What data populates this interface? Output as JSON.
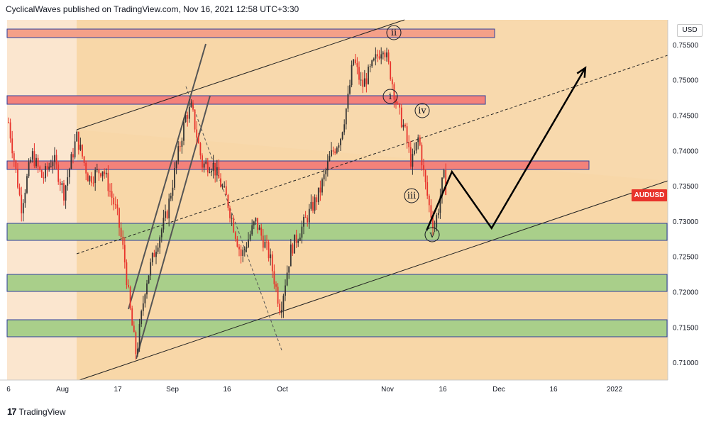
{
  "header": {
    "publisher_text": "CyclicalWaves published on TradingView.com, Nov 16, 2021 12:58 UTC+3:30"
  },
  "footer": {
    "brand": "TradingView",
    "logo_glyph": "17"
  },
  "colors": {
    "up_candle": "#333333",
    "down_candle": "#e8332b",
    "red_zone": "#f4827a",
    "green_zone": "#8cc878",
    "orange_bg": "#f8d7a8",
    "badge": "#e8332b"
  },
  "chart_data": {
    "type": "candlestick",
    "symbol": "AUDUSD",
    "currency": "USD",
    "x_ticks": [
      "6",
      "Aug",
      "17",
      "Sep",
      "16",
      "Oct",
      "Nov",
      "16",
      "Dec",
      "16",
      "2022"
    ],
    "y_ticks": [
      "0.75500",
      "0.75000",
      "0.74500",
      "0.74000",
      "0.73500",
      "0.73000",
      "0.72500",
      "0.72000",
      "0.71500",
      "0.71000"
    ],
    "ylim": [
      0.7075,
      0.7585
    ],
    "resistance_zones": [
      [
        0.7556,
        0.7567
      ],
      [
        0.7465,
        0.7477
      ],
      [
        0.7372,
        0.7383
      ]
    ],
    "support_zones": [
      [
        0.7272,
        0.7296
      ],
      [
        0.7202,
        0.7226
      ],
      [
        0.7138,
        0.7162
      ]
    ],
    "wave_labels": [
      {
        "label": "ii",
        "date": "2021-10-28",
        "price": 0.7563
      },
      {
        "label": "i",
        "date": "2021-10-28",
        "price": 0.7473
      },
      {
        "label": "iv",
        "date": "2021-11-05",
        "price": 0.7455
      },
      {
        "label": "iii",
        "date": "2021-11-08",
        "price": 0.7335
      },
      {
        "label": "v",
        "date": "2021-11-10",
        "price": 0.728
      }
    ],
    "projection_path": [
      {
        "date": "2021-11-10",
        "price": 0.7287
      },
      {
        "date": "2021-11-17",
        "price": 0.737
      },
      {
        "date": "2021-11-28",
        "price": 0.729
      },
      {
        "date": "2021-12-24",
        "price": 0.7517
      }
    ],
    "last_price": 0.7338
  }
}
